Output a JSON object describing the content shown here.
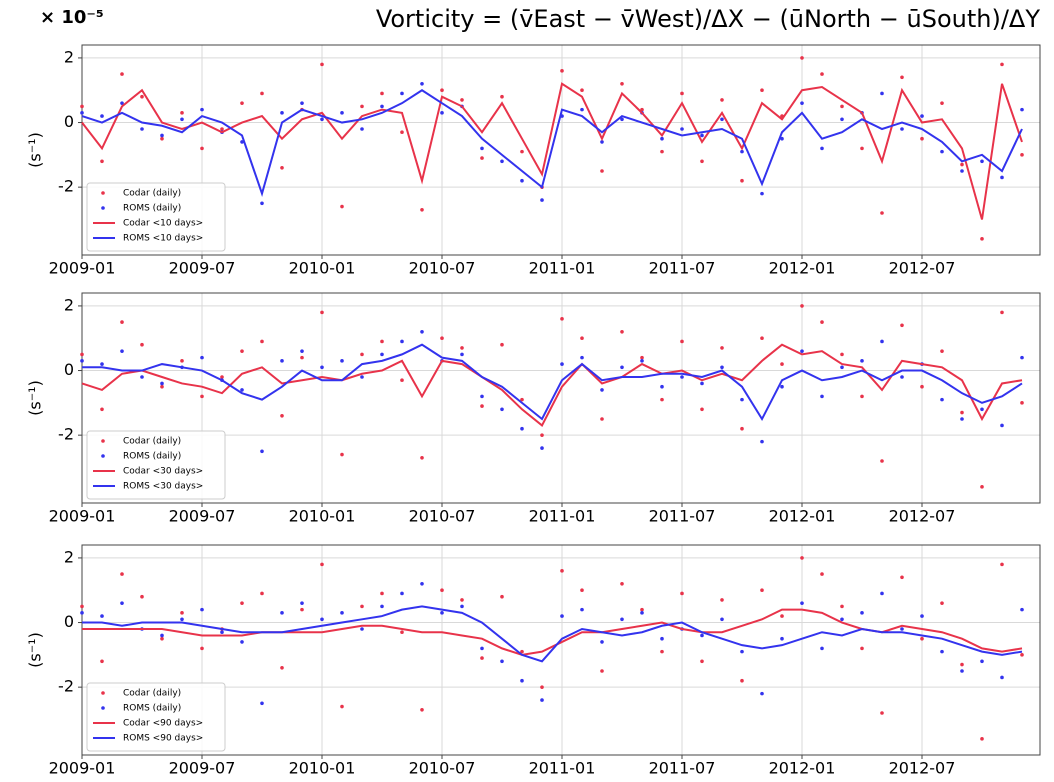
{
  "chart_data": [
    {
      "type": "line",
      "title": "Vorticity = (v̄East − v̄West)/ΔX − (ūNorth − ūSouth)/ΔY",
      "y_exponent": "× 10⁻⁵",
      "ylabel": "(s⁻¹)",
      "x": [
        "2009-01",
        "2009-02",
        "2009-03",
        "2009-04",
        "2009-05",
        "2009-06",
        "2009-07",
        "2009-08",
        "2009-09",
        "2009-10",
        "2009-11",
        "2009-12",
        "2010-01",
        "2010-02",
        "2010-03",
        "2010-04",
        "2010-05",
        "2010-06",
        "2010-07",
        "2010-08",
        "2010-09",
        "2010-10",
        "2010-11",
        "2010-12",
        "2011-01",
        "2011-02",
        "2011-03",
        "2011-04",
        "2011-05",
        "2011-06",
        "2011-07",
        "2011-08",
        "2011-09",
        "2011-10",
        "2011-11",
        "2011-12",
        "2012-01",
        "2012-02",
        "2012-03",
        "2012-04",
        "2012-05",
        "2012-06",
        "2012-07",
        "2012-08",
        "2012-09",
        "2012-10",
        "2012-11",
        "2012-12"
      ],
      "xticks": [
        "2009-01",
        "2009-07",
        "2010-01",
        "2010-07",
        "2011-01",
        "2011-07",
        "2012-01",
        "2012-07"
      ],
      "ylim": [
        -4.1,
        2.4
      ],
      "yticks": [
        -2,
        0,
        2
      ],
      "grid": true,
      "legend": "lower left",
      "series": [
        {
          "name": "Codar (daily)",
          "color": "#e8334a",
          "mode": "markers",
          "values": [
            0.5,
            -1.2,
            1.5,
            0.8,
            -0.5,
            0.3,
            -0.8,
            -0.2,
            0.6,
            0.9,
            -1.4,
            0.4,
            1.8,
            -2.6,
            0.5,
            0.9,
            -0.3,
            -2.7,
            1.0,
            0.7,
            -1.1,
            0.8,
            -0.9,
            -2.0,
            1.6,
            1.0,
            -1.5,
            1.2,
            0.4,
            -0.9,
            0.9,
            -1.2,
            0.7,
            -1.8,
            1.0,
            0.2,
            2.0,
            1.5,
            0.5,
            -0.8,
            -2.8,
            1.4,
            -0.5,
            0.6,
            -1.3,
            -3.6,
            1.8,
            -1.0
          ]
        },
        {
          "name": "ROMS (daily)",
          "color": "#3333ee",
          "mode": "markers",
          "values": [
            0.3,
            0.2,
            0.6,
            -0.2,
            -0.4,
            0.1,
            0.4,
            -0.3,
            -0.6,
            -2.5,
            0.3,
            0.6,
            0.1,
            0.3,
            -0.2,
            0.5,
            0.9,
            1.2,
            0.3,
            0.5,
            -0.8,
            -1.2,
            -1.8,
            -2.4,
            0.2,
            0.4,
            -0.6,
            0.1,
            0.3,
            -0.5,
            -0.2,
            -0.4,
            0.1,
            -0.9,
            -2.2,
            -0.5,
            0.6,
            -0.8,
            0.1,
            0.3,
            0.9,
            -0.2,
            0.2,
            -0.9,
            -1.5,
            -1.2,
            -1.7,
            0.4
          ]
        },
        {
          "name": "Codar <10 days>",
          "color": "#e8334a",
          "mode": "line",
          "values": [
            0,
            -0.8,
            0.5,
            1.0,
            0,
            -0.2,
            0,
            -0.3,
            0,
            0.2,
            -0.5,
            0.1,
            0.3,
            -0.5,
            0.2,
            0.4,
            0.3,
            -1.8,
            0.8,
            0.5,
            -0.3,
            0.6,
            -0.5,
            -1.6,
            1.2,
            0.8,
            -0.5,
            0.9,
            0.3,
            -0.4,
            0.6,
            -0.6,
            0.3,
            -0.8,
            0.6,
            0.1,
            1.0,
            1.1,
            0.7,
            0.3,
            -1.2,
            1.0,
            0,
            0.1,
            -0.8,
            -3.0,
            1.2,
            -0.6
          ]
        },
        {
          "name": "ROMS <10 days>",
          "color": "#3333ee",
          "mode": "line",
          "values": [
            0.2,
            0,
            0.3,
            0,
            -0.1,
            -0.3,
            0.2,
            0,
            -0.4,
            -2.2,
            0,
            0.4,
            0.2,
            0,
            0.1,
            0.3,
            0.6,
            1.0,
            0.6,
            0.2,
            -0.5,
            -1.0,
            -1.5,
            -2.0,
            0.4,
            0.2,
            -0.3,
            0.2,
            0,
            -0.2,
            -0.4,
            -0.3,
            -0.2,
            -0.5,
            -1.9,
            -0.3,
            0.3,
            -0.5,
            -0.3,
            0.1,
            -0.2,
            0,
            -0.2,
            -0.6,
            -1.2,
            -1.0,
            -1.5,
            -0.2
          ]
        }
      ]
    },
    {
      "type": "line",
      "ylabel": "(s⁻¹)",
      "x": [
        "2009-01",
        "2009-02",
        "2009-03",
        "2009-04",
        "2009-05",
        "2009-06",
        "2009-07",
        "2009-08",
        "2009-09",
        "2009-10",
        "2009-11",
        "2009-12",
        "2010-01",
        "2010-02",
        "2010-03",
        "2010-04",
        "2010-05",
        "2010-06",
        "2010-07",
        "2010-08",
        "2010-09",
        "2010-10",
        "2010-11",
        "2010-12",
        "2011-01",
        "2011-02",
        "2011-03",
        "2011-04",
        "2011-05",
        "2011-06",
        "2011-07",
        "2011-08",
        "2011-09",
        "2011-10",
        "2011-11",
        "2011-12",
        "2012-01",
        "2012-02",
        "2012-03",
        "2012-04",
        "2012-05",
        "2012-06",
        "2012-07",
        "2012-08",
        "2012-09",
        "2012-10",
        "2012-11",
        "2012-12"
      ],
      "xticks": [
        "2009-01",
        "2009-07",
        "2010-01",
        "2010-07",
        "2011-01",
        "2011-07",
        "2012-01",
        "2012-07"
      ],
      "ylim": [
        -4.1,
        2.4
      ],
      "yticks": [
        -2,
        0,
        2
      ],
      "grid": true,
      "legend": "lower left",
      "series": [
        {
          "name": "Codar (daily)",
          "color": "#e8334a",
          "mode": "markers",
          "values": [
            0.5,
            -1.2,
            1.5,
            0.8,
            -0.5,
            0.3,
            -0.8,
            -0.2,
            0.6,
            0.9,
            -1.4,
            0.4,
            1.8,
            -2.6,
            0.5,
            0.9,
            -0.3,
            -2.7,
            1.0,
            0.7,
            -1.1,
            0.8,
            -0.9,
            -2.0,
            1.6,
            1.0,
            -1.5,
            1.2,
            0.4,
            -0.9,
            0.9,
            -1.2,
            0.7,
            -1.8,
            1.0,
            0.2,
            2.0,
            1.5,
            0.5,
            -0.8,
            -2.8,
            1.4,
            -0.5,
            0.6,
            -1.3,
            -3.6,
            1.8,
            -1.0
          ]
        },
        {
          "name": "ROMS (daily)",
          "color": "#3333ee",
          "mode": "markers",
          "values": [
            0.3,
            0.2,
            0.6,
            -0.2,
            -0.4,
            0.1,
            0.4,
            -0.3,
            -0.6,
            -2.5,
            0.3,
            0.6,
            0.1,
            0.3,
            -0.2,
            0.5,
            0.9,
            1.2,
            0.3,
            0.5,
            -0.8,
            -1.2,
            -1.8,
            -2.4,
            0.2,
            0.4,
            -0.6,
            0.1,
            0.3,
            -0.5,
            -0.2,
            -0.4,
            0.1,
            -0.9,
            -2.2,
            -0.5,
            0.6,
            -0.8,
            0.1,
            0.3,
            0.9,
            -0.2,
            0.2,
            -0.9,
            -1.5,
            -1.2,
            -1.7,
            0.4
          ]
        },
        {
          "name": "Codar <30 days>",
          "color": "#e8334a",
          "mode": "line",
          "values": [
            -0.4,
            -0.6,
            -0.1,
            0,
            -0.2,
            -0.4,
            -0.5,
            -0.7,
            -0.1,
            0.1,
            -0.4,
            -0.3,
            -0.2,
            -0.3,
            -0.1,
            0,
            0.3,
            -0.8,
            0.3,
            0.2,
            -0.2,
            -0.6,
            -1.2,
            -1.7,
            -0.5,
            0.2,
            -0.4,
            -0.2,
            0.2,
            -0.1,
            0,
            -0.3,
            -0.1,
            -0.3,
            0.3,
            0.8,
            0.5,
            0.6,
            0.2,
            0.1,
            -0.6,
            0.3,
            0.2,
            0.1,
            -0.3,
            -1.5,
            -0.4,
            -0.3
          ]
        },
        {
          "name": "ROMS <30 days>",
          "color": "#3333ee",
          "mode": "line",
          "values": [
            0.1,
            0.1,
            0,
            0,
            0.2,
            0.1,
            0,
            -0.3,
            -0.7,
            -0.9,
            -0.5,
            0,
            -0.3,
            -0.3,
            0.2,
            0.3,
            0.5,
            0.8,
            0.4,
            0.3,
            -0.2,
            -0.5,
            -1.0,
            -1.5,
            -0.3,
            0.2,
            -0.3,
            -0.2,
            -0.2,
            -0.1,
            -0.1,
            -0.2,
            0,
            -0.5,
            -1.5,
            -0.3,
            0,
            -0.3,
            -0.2,
            0,
            -0.3,
            0,
            0,
            -0.3,
            -0.7,
            -1.0,
            -0.8,
            -0.4
          ]
        }
      ]
    },
    {
      "type": "line",
      "ylabel": "(s⁻¹)",
      "x": [
        "2009-01",
        "2009-02",
        "2009-03",
        "2009-04",
        "2009-05",
        "2009-06",
        "2009-07",
        "2009-08",
        "2009-09",
        "2009-10",
        "2009-11",
        "2009-12",
        "2010-01",
        "2010-02",
        "2010-03",
        "2010-04",
        "2010-05",
        "2010-06",
        "2010-07",
        "2010-08",
        "2010-09",
        "2010-10",
        "2010-11",
        "2010-12",
        "2011-01",
        "2011-02",
        "2011-03",
        "2011-04",
        "2011-05",
        "2011-06",
        "2011-07",
        "2011-08",
        "2011-09",
        "2011-10",
        "2011-11",
        "2011-12",
        "2012-01",
        "2012-02",
        "2012-03",
        "2012-04",
        "2012-05",
        "2012-06",
        "2012-07",
        "2012-08",
        "2012-09",
        "2012-10",
        "2012-11",
        "2012-12"
      ],
      "xticks": [
        "2009-01",
        "2009-07",
        "2010-01",
        "2010-07",
        "2011-01",
        "2011-07",
        "2012-01",
        "2012-07"
      ],
      "ylim": [
        -4.1,
        2.4
      ],
      "yticks": [
        -2,
        0,
        2
      ],
      "grid": true,
      "legend": "lower left",
      "series": [
        {
          "name": "Codar (daily)",
          "color": "#e8334a",
          "mode": "markers",
          "values": [
            0.5,
            -1.2,
            1.5,
            0.8,
            -0.5,
            0.3,
            -0.8,
            -0.2,
            0.6,
            0.9,
            -1.4,
            0.4,
            1.8,
            -2.6,
            0.5,
            0.9,
            -0.3,
            -2.7,
            1.0,
            0.7,
            -1.1,
            0.8,
            -0.9,
            -2.0,
            1.6,
            1.0,
            -1.5,
            1.2,
            0.4,
            -0.9,
            0.9,
            -1.2,
            0.7,
            -1.8,
            1.0,
            0.2,
            2.0,
            1.5,
            0.5,
            -0.8,
            -2.8,
            1.4,
            -0.5,
            0.6,
            -1.3,
            -3.6,
            1.8,
            -1.0
          ]
        },
        {
          "name": "ROMS (daily)",
          "color": "#3333ee",
          "mode": "markers",
          "values": [
            0.3,
            0.2,
            0.6,
            -0.2,
            -0.4,
            0.1,
            0.4,
            -0.3,
            -0.6,
            -2.5,
            0.3,
            0.6,
            0.1,
            0.3,
            -0.2,
            0.5,
            0.9,
            1.2,
            0.3,
            0.5,
            -0.8,
            -1.2,
            -1.8,
            -2.4,
            0.2,
            0.4,
            -0.6,
            0.1,
            0.3,
            -0.5,
            -0.2,
            -0.4,
            0.1,
            -0.9,
            -2.2,
            -0.5,
            0.6,
            -0.8,
            0.1,
            0.3,
            0.9,
            -0.2,
            0.2,
            -0.9,
            -1.5,
            -1.2,
            -1.7,
            0.4
          ]
        },
        {
          "name": "Codar <90 days>",
          "color": "#e8334a",
          "mode": "line",
          "values": [
            -0.2,
            -0.2,
            -0.2,
            -0.2,
            -0.2,
            -0.3,
            -0.4,
            -0.4,
            -0.4,
            -0.3,
            -0.3,
            -0.3,
            -0.3,
            -0.2,
            -0.1,
            -0.1,
            -0.2,
            -0.3,
            -0.3,
            -0.4,
            -0.5,
            -0.8,
            -1.0,
            -0.9,
            -0.6,
            -0.3,
            -0.3,
            -0.2,
            -0.1,
            0,
            -0.2,
            -0.3,
            -0.3,
            -0.1,
            0.1,
            0.4,
            0.4,
            0.3,
            0,
            -0.2,
            -0.3,
            -0.1,
            -0.2,
            -0.3,
            -0.5,
            -0.8,
            -0.9,
            -0.8
          ]
        },
        {
          "name": "ROMS <90 days>",
          "color": "#3333ee",
          "mode": "line",
          "values": [
            0,
            0,
            -0.1,
            0,
            0,
            0,
            -0.1,
            -0.2,
            -0.3,
            -0.3,
            -0.3,
            -0.2,
            -0.1,
            0,
            0.1,
            0.2,
            0.4,
            0.5,
            0.4,
            0.3,
            0,
            -0.5,
            -1.0,
            -1.2,
            -0.5,
            -0.2,
            -0.3,
            -0.4,
            -0.3,
            -0.1,
            0,
            -0.3,
            -0.5,
            -0.7,
            -0.8,
            -0.7,
            -0.5,
            -0.3,
            -0.4,
            -0.2,
            -0.3,
            -0.3,
            -0.4,
            -0.5,
            -0.7,
            -0.9,
            -1.0,
            -0.9
          ]
        }
      ]
    }
  ]
}
